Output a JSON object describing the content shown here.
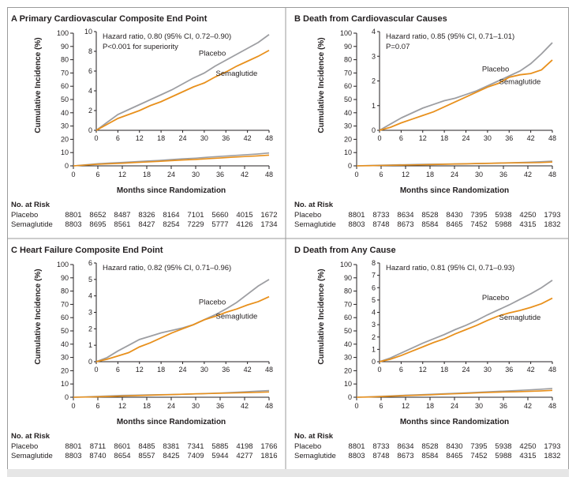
{
  "figure": {
    "colors": {
      "placebo": "#9d9ea2",
      "semaglutide": "#e8901c",
      "axis": "#231f20",
      "text": "#231f20"
    }
  },
  "chart_data": [
    {
      "type": "line",
      "panel": "A",
      "title": "Primary Cardiovascular Composite End Point",
      "xlabel": "Months since Randomization",
      "ylabel": "Cumulative Incidence (%)",
      "x_ticks": [
        0,
        6,
        12,
        18,
        24,
        30,
        36,
        42,
        48
      ],
      "xlim": [
        0,
        48
      ],
      "main_ylim": [
        0,
        100
      ],
      "main_yticks": [
        0,
        10,
        20,
        30,
        40,
        50,
        60,
        70,
        80,
        90,
        100
      ],
      "inset_ylim": [
        0,
        10
      ],
      "inset_yticks": [
        0,
        2,
        4,
        6,
        8,
        10
      ],
      "annotation": [
        "Hazard ratio, 0.80 (95% CI, 0.72–0.90)",
        "P<0.001 for superiority"
      ],
      "series": [
        {
          "name": "Placebo",
          "x": [
            0,
            3,
            6,
            9,
            12,
            15,
            18,
            21,
            24,
            27,
            30,
            33,
            36,
            39,
            42,
            45,
            48
          ],
          "y": [
            0,
            0.8,
            1.6,
            2.1,
            2.6,
            3.1,
            3.6,
            4.1,
            4.7,
            5.3,
            5.8,
            6.5,
            7.1,
            7.7,
            8.3,
            8.9,
            9.7
          ]
        },
        {
          "name": "Semaglutide",
          "x": [
            0,
            3,
            6,
            9,
            12,
            15,
            18,
            21,
            24,
            27,
            30,
            33,
            36,
            39,
            42,
            45,
            48
          ],
          "y": [
            0,
            0.6,
            1.2,
            1.6,
            2.0,
            2.5,
            2.9,
            3.4,
            3.9,
            4.4,
            4.8,
            5.4,
            5.9,
            6.5,
            7.0,
            7.5,
            8.1
          ]
        }
      ],
      "labels": [
        "Placebo",
        "Semaglutide"
      ],
      "risk": {
        "header": "No. at Risk",
        "rows": [
          {
            "name": "Placebo",
            "values": [
              "8801",
              "8652",
              "8487",
              "8326",
              "8164",
              "7101",
              "5660",
              "4015",
              "1672"
            ]
          },
          {
            "name": "Semaglutide",
            "values": [
              "8803",
              "8695",
              "8561",
              "8427",
              "8254",
              "7229",
              "5777",
              "4126",
              "1734"
            ]
          }
        ]
      }
    },
    {
      "type": "line",
      "panel": "B",
      "title": "Death from Cardiovascular Causes",
      "xlabel": "Months since Randomization",
      "ylabel": "Cumulative Incidence (%)",
      "x_ticks": [
        0,
        6,
        12,
        18,
        24,
        30,
        36,
        42,
        48
      ],
      "xlim": [
        0,
        48
      ],
      "main_ylim": [
        0,
        100
      ],
      "main_yticks": [
        0,
        10,
        20,
        30,
        40,
        50,
        60,
        70,
        80,
        90,
        100
      ],
      "inset_ylim": [
        0,
        4
      ],
      "inset_yticks": [
        0,
        1,
        2,
        3,
        4
      ],
      "annotation": [
        "Hazard ratio, 0.85 (95% CI, 0.71–1.01)",
        "P=0.07"
      ],
      "series": [
        {
          "name": "Placebo",
          "x": [
            0,
            3,
            6,
            9,
            12,
            15,
            18,
            21,
            24,
            27,
            30,
            33,
            36,
            39,
            42,
            45,
            48
          ],
          "y": [
            0,
            0.25,
            0.5,
            0.7,
            0.9,
            1.05,
            1.2,
            1.3,
            1.45,
            1.6,
            1.8,
            2.0,
            2.2,
            2.4,
            2.7,
            3.1,
            3.55
          ]
        },
        {
          "name": "Semaglutide",
          "x": [
            0,
            3,
            6,
            9,
            12,
            15,
            18,
            21,
            24,
            27,
            30,
            33,
            36,
            39,
            42,
            45,
            48
          ],
          "y": [
            0,
            0.12,
            0.3,
            0.45,
            0.6,
            0.75,
            0.95,
            1.15,
            1.35,
            1.55,
            1.75,
            1.9,
            2.15,
            2.25,
            2.3,
            2.45,
            2.85
          ]
        }
      ],
      "labels": [
        "Placebo",
        "Semaglutide"
      ],
      "risk": {
        "header": "No. at Risk",
        "rows": [
          {
            "name": "Placebo",
            "values": [
              "8801",
              "8733",
              "8634",
              "8528",
              "8430",
              "7395",
              "5938",
              "4250",
              "1793"
            ]
          },
          {
            "name": "Semaglutide",
            "values": [
              "8803",
              "8748",
              "8673",
              "8584",
              "8465",
              "7452",
              "5988",
              "4315",
              "1832"
            ]
          }
        ]
      }
    },
    {
      "type": "line",
      "panel": "C",
      "title": "Heart Failure Composite End Point",
      "xlabel": "Months since Randomization",
      "ylabel": "Cumulative Incidence (%)",
      "x_ticks": [
        0,
        6,
        12,
        18,
        24,
        30,
        36,
        42,
        48
      ],
      "xlim": [
        0,
        48
      ],
      "main_ylim": [
        0,
        100
      ],
      "main_yticks": [
        0,
        10,
        20,
        30,
        40,
        50,
        60,
        70,
        80,
        90,
        100
      ],
      "inset_ylim": [
        0,
        6
      ],
      "inset_yticks": [
        0,
        1,
        2,
        3,
        4,
        5,
        6
      ],
      "annotation": [
        "Hazard ratio, 0.82 (95% CI, 0.71–0.96)"
      ],
      "series": [
        {
          "name": "Placebo",
          "x": [
            0,
            3,
            6,
            9,
            12,
            15,
            18,
            21,
            24,
            27,
            30,
            33,
            36,
            39,
            42,
            45,
            48
          ],
          "y": [
            0,
            0.25,
            0.65,
            1.0,
            1.35,
            1.55,
            1.75,
            1.9,
            2.05,
            2.25,
            2.55,
            2.85,
            3.2,
            3.6,
            4.1,
            4.6,
            5.0
          ]
        },
        {
          "name": "Semaglutide",
          "x": [
            0,
            3,
            6,
            9,
            12,
            15,
            18,
            21,
            24,
            27,
            30,
            33,
            36,
            39,
            42,
            45,
            48
          ],
          "y": [
            0,
            0.15,
            0.35,
            0.55,
            0.9,
            1.15,
            1.45,
            1.75,
            2.0,
            2.25,
            2.55,
            2.75,
            3.0,
            3.2,
            3.45,
            3.65,
            3.95
          ]
        }
      ],
      "labels": [
        "Placebo",
        "Semaglutide"
      ],
      "risk": {
        "header": "No. at Risk",
        "rows": [
          {
            "name": "Placebo",
            "values": [
              "8801",
              "8711",
              "8601",
              "8485",
              "8381",
              "7341",
              "5885",
              "4198",
              "1766"
            ]
          },
          {
            "name": "Semaglutide",
            "values": [
              "8803",
              "8740",
              "8654",
              "8557",
              "8425",
              "7409",
              "5944",
              "4277",
              "1816"
            ]
          }
        ]
      }
    },
    {
      "type": "line",
      "panel": "D",
      "title": "Death from Any Cause",
      "xlabel": "Months since Randomization",
      "ylabel": "Cumulative Incidence (%)",
      "x_ticks": [
        0,
        6,
        12,
        18,
        24,
        30,
        36,
        42,
        48
      ],
      "xlim": [
        0,
        48
      ],
      "main_ylim": [
        0,
        100
      ],
      "main_yticks": [
        0,
        10,
        20,
        30,
        40,
        50,
        60,
        70,
        80,
        90,
        100
      ],
      "inset_ylim": [
        0,
        8
      ],
      "inset_yticks": [
        0,
        1,
        2,
        3,
        4,
        5,
        6,
        7,
        8
      ],
      "annotation": [
        "Hazard ratio, 0.81 (95% CI, 0.71–0.93)"
      ],
      "series": [
        {
          "name": "Placebo",
          "x": [
            0,
            3,
            6,
            9,
            12,
            15,
            18,
            21,
            24,
            27,
            30,
            33,
            36,
            39,
            42,
            45,
            48
          ],
          "y": [
            0,
            0.3,
            0.7,
            1.1,
            1.5,
            1.85,
            2.2,
            2.6,
            2.95,
            3.35,
            3.8,
            4.2,
            4.6,
            5.05,
            5.5,
            6.0,
            6.6
          ]
        },
        {
          "name": "Semaglutide",
          "x": [
            0,
            3,
            6,
            9,
            12,
            15,
            18,
            21,
            24,
            27,
            30,
            33,
            36,
            39,
            42,
            45,
            48
          ],
          "y": [
            0,
            0.2,
            0.5,
            0.85,
            1.2,
            1.55,
            1.85,
            2.25,
            2.6,
            2.95,
            3.35,
            3.7,
            3.95,
            4.15,
            4.4,
            4.7,
            5.15
          ]
        }
      ],
      "labels": [
        "Placebo",
        "Semaglutide"
      ],
      "risk": {
        "header": "No. at Risk",
        "rows": [
          {
            "name": "Placebo",
            "values": [
              "8801",
              "8733",
              "8634",
              "8528",
              "8430",
              "7395",
              "5938",
              "4250",
              "1793"
            ]
          },
          {
            "name": "Semaglutide",
            "values": [
              "8803",
              "8748",
              "8673",
              "8584",
              "8465",
              "7452",
              "5988",
              "4315",
              "1832"
            ]
          }
        ]
      }
    }
  ]
}
